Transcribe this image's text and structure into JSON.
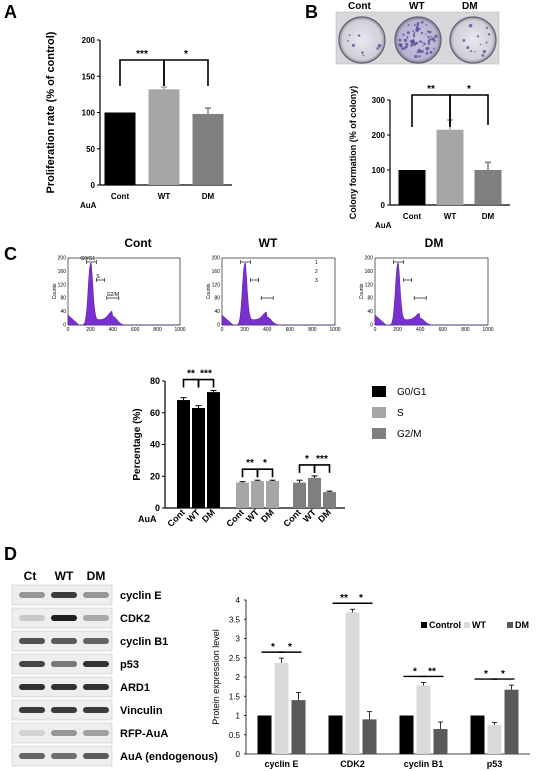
{
  "panels": {
    "a": "A",
    "b": "B",
    "c": "C",
    "d": "D"
  },
  "treatment_label": "AuA",
  "chart_data": [
    {
      "type": "bar",
      "panel": "A",
      "categories": [
        "Cont",
        "WT",
        "DM"
      ],
      "values": [
        100,
        132,
        98
      ],
      "errors": [
        0,
        3,
        8
      ],
      "colors": [
        "#000000",
        "#a6a6a6",
        "#7f7f7f"
      ],
      "ylabel": "Proliferation rate (% of control)",
      "xlabel": "",
      "ylim": [
        0,
        200
      ],
      "yticks": [
        "0",
        "50",
        "100",
        "150",
        "200"
      ],
      "significance": [
        {
          "from": 0,
          "to": 1,
          "label": "***"
        },
        {
          "from": 1,
          "to": 2,
          "label": "*"
        }
      ]
    },
    {
      "type": "bar",
      "panel": "B",
      "categories": [
        "Cont",
        "WT",
        "DM"
      ],
      "values": [
        100,
        215,
        100
      ],
      "errors": [
        0,
        28,
        22
      ],
      "colors": [
        "#000000",
        "#a6a6a6",
        "#7f7f7f"
      ],
      "ylabel": "Colony formation (% of colony)",
      "xlabel": "",
      "ylim": [
        0,
        300
      ],
      "yticks": [
        "0",
        "100",
        "200",
        "300"
      ],
      "significance": [
        {
          "from": 0,
          "to": 1,
          "label": "**"
        },
        {
          "from": 1,
          "to": 2,
          "label": "*"
        }
      ]
    },
    {
      "type": "bar",
      "panel": "C",
      "groups": [
        "G0/G1",
        "S",
        "G2/M"
      ],
      "categories": [
        "Cont",
        "WT",
        "DM"
      ],
      "series": [
        {
          "name": "G0/G1",
          "values": [
            68,
            63,
            73
          ],
          "errors": [
            1.5,
            1.5,
            1
          ],
          "color": "#000000"
        },
        {
          "name": "S",
          "values": [
            16,
            17,
            17
          ],
          "errors": [
            0.6,
            0.5,
            0.5
          ],
          "color": "#a6a6a6"
        },
        {
          "name": "G2/M",
          "values": [
            16,
            19,
            10
          ],
          "errors": [
            1.5,
            1.2,
            0.6
          ],
          "color": "#7f7f7f"
        }
      ],
      "ylabel": "Percentage (%)",
      "xlabel": "",
      "ylim": [
        0,
        80
      ],
      "yticks": [
        "0",
        "20",
        "40",
        "60",
        "80"
      ],
      "legend_position": "right",
      "significance": [
        {
          "group": 0,
          "from": 0,
          "to": 1,
          "label": "**"
        },
        {
          "group": 0,
          "from": 1,
          "to": 2,
          "label": "***"
        },
        {
          "group": 1,
          "from": 0,
          "to": 1,
          "label": "**"
        },
        {
          "group": 1,
          "from": 1,
          "to": 2,
          "label": "*"
        },
        {
          "group": 2,
          "from": 0,
          "to": 1,
          "label": "*"
        },
        {
          "group": 2,
          "from": 1,
          "to": 2,
          "label": "***"
        }
      ]
    },
    {
      "type": "bar",
      "panel": "D",
      "categories": [
        "cyclin E",
        "CDK2",
        "cyclin B1",
        "p53"
      ],
      "series": [
        {
          "name": "Control",
          "values": [
            1,
            1,
            1,
            1
          ],
          "errors": [
            0,
            0,
            0,
            0
          ],
          "color": "#000000"
        },
        {
          "name": "WT",
          "values": [
            2.37,
            3.68,
            1.78,
            0.75
          ],
          "errors": [
            0.12,
            0.08,
            0.08,
            0.07
          ],
          "color": "#d9d9d9"
        },
        {
          "name": "DM",
          "values": [
            1.4,
            0.9,
            0.65,
            1.67
          ],
          "errors": [
            0.2,
            0.2,
            0.18,
            0.12
          ],
          "color": "#595959"
        }
      ],
      "ylabel": "Protein expression level",
      "xlabel": "",
      "ylim": [
        0,
        4
      ],
      "yticks": [
        "0",
        "0.5",
        "1",
        "1.5",
        "2",
        "2.5",
        "3",
        "3.5",
        "4"
      ],
      "legend_position": "top-right",
      "significance": [
        {
          "group": 0,
          "from": 0,
          "to": 1,
          "label": "*"
        },
        {
          "group": 0,
          "from": 1,
          "to": 2,
          "label": "*"
        },
        {
          "group": 1,
          "from": 0,
          "to": 1,
          "label": "**"
        },
        {
          "group": 1,
          "from": 1,
          "to": 2,
          "label": "*"
        },
        {
          "group": 2,
          "from": 0,
          "to": 1,
          "label": "*"
        },
        {
          "group": 2,
          "from": 1,
          "to": 2,
          "label": "**"
        },
        {
          "group": 3,
          "from": 0,
          "to": 1,
          "label": "*"
        },
        {
          "group": 3,
          "from": 1,
          "to": 2,
          "label": "*"
        }
      ]
    }
  ],
  "colony_plate": {
    "labels": [
      "Cont",
      "WT",
      "DM"
    ]
  },
  "flow": {
    "panels": [
      {
        "title": "Cont",
        "gates": [
          "G0/G1",
          "S",
          "G2/M"
        ],
        "gate_numbers": []
      },
      {
        "title": "WT",
        "gates": [],
        "gate_numbers": [
          "1",
          "2",
          "3"
        ]
      },
      {
        "title": "DM",
        "gates": [],
        "gate_numbers": []
      }
    ],
    "yticks": [
      "0",
      "40",
      "80",
      "120",
      "160",
      "200"
    ],
    "xticks": [
      "0",
      "200",
      "400",
      "600",
      "800",
      "1000"
    ],
    "ylabel": "Counts"
  },
  "western": {
    "lanes": [
      "Ct",
      "WT",
      "DM"
    ],
    "bands": [
      "cyclin E",
      "CDK2",
      "cyclin B1",
      "p53",
      "ARD1",
      "Vinculin",
      "RFP-AuA",
      "AuA (endogenous)"
    ]
  }
}
